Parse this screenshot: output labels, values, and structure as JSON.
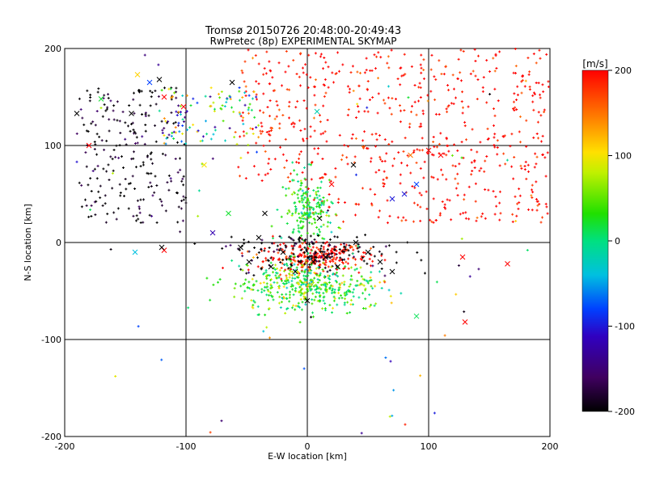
{
  "chart_data": {
    "type": "scatter",
    "title": "Tromsø 20150726 20:48:00-20:49:43",
    "subtitle": "RwPretec (8p) EXPERIMENTAL SKYMAP",
    "xlabel": "E-W location [km]",
    "ylabel": "N-S location [km]",
    "xlim": [
      -200,
      200
    ],
    "ylim": [
      -200,
      200
    ],
    "x_ticks": [
      -200,
      -100,
      0,
      100,
      200
    ],
    "y_ticks": [
      -200,
      -100,
      0,
      100,
      200
    ],
    "grid": true,
    "marker_types": [
      "plus",
      "cross"
    ],
    "colorbar": {
      "label": "[m/s]",
      "range": [
        -200,
        200
      ],
      "ticks": [
        200,
        100,
        0,
        -100,
        -200
      ],
      "colormap": "rainbow (black-purple-blue-cyan-green-yellow-orange-red)"
    },
    "clusters": [
      {
        "region": "north-east broad area",
        "x_range": [
          -60,
          200
        ],
        "y_range": [
          20,
          200
        ],
        "velocity": 200
      },
      {
        "region": "north-west",
        "x_range": [
          -190,
          -100
        ],
        "y_range": [
          20,
          160
        ],
        "velocity": -200
      },
      {
        "region": "north-west arc",
        "x_range": [
          -120,
          -40
        ],
        "y_range": [
          100,
          160
        ],
        "velocity": 20
      },
      {
        "region": "central column",
        "x_range": [
          -20,
          20
        ],
        "y_range": [
          0,
          70
        ],
        "velocity": 20
      },
      {
        "region": "center band",
        "x_range": [
          -40,
          50
        ],
        "y_range": [
          -30,
          0
        ],
        "velocity": 200
      },
      {
        "region": "center core",
        "x_range": [
          -60,
          70
        ],
        "y_range": [
          -30,
          10
        ],
        "velocity": -200
      },
      {
        "region": "south of center",
        "x_range": [
          -60,
          60
        ],
        "y_range": [
          -70,
          -20
        ],
        "velocity": 20
      }
    ],
    "points": [
      {
        "x": -170,
        "y": 148,
        "v": 20,
        "m": "cross"
      },
      {
        "x": -140,
        "y": 173,
        "v": 110,
        "m": "cross"
      },
      {
        "x": -130,
        "y": 165,
        "v": -80,
        "m": "cross"
      },
      {
        "x": -122,
        "y": 168,
        "v": -200,
        "m": "cross"
      },
      {
        "x": -118,
        "y": 150,
        "v": 200,
        "m": "cross"
      },
      {
        "x": -190,
        "y": 133,
        "v": -200,
        "m": "cross"
      },
      {
        "x": -180,
        "y": 100,
        "v": 200,
        "m": "cross"
      },
      {
        "x": -145,
        "y": 133,
        "v": -200,
        "m": "cross"
      },
      {
        "x": -142,
        "y": -10,
        "v": -40,
        "m": "cross"
      },
      {
        "x": -118,
        "y": -8,
        "v": 200,
        "m": "cross"
      },
      {
        "x": -120,
        "y": -5,
        "v": -200,
        "m": "cross"
      },
      {
        "x": -102,
        "y": 140,
        "v": 200,
        "m": "cross"
      },
      {
        "x": -62,
        "y": 165,
        "v": -200,
        "m": "cross"
      },
      {
        "x": -78,
        "y": 10,
        "v": -120,
        "m": "cross"
      },
      {
        "x": 90,
        "y": 60,
        "v": -80,
        "m": "cross"
      },
      {
        "x": 70,
        "y": 45,
        "v": -100,
        "m": "cross"
      },
      {
        "x": 80,
        "y": 50,
        "v": -100,
        "m": "cross"
      },
      {
        "x": 85,
        "y": 90,
        "v": 150,
        "m": "cross"
      },
      {
        "x": 100,
        "y": 95,
        "v": 200,
        "m": "cross"
      },
      {
        "x": 110,
        "y": 90,
        "v": 200,
        "m": "cross"
      },
      {
        "x": 130,
        "y": -82,
        "v": 200,
        "m": "cross"
      },
      {
        "x": 128,
        "y": -15,
        "v": 200,
        "m": "cross"
      },
      {
        "x": 165,
        "y": -22,
        "v": 200,
        "m": "cross"
      },
      {
        "x": 90,
        "y": -76,
        "v": 10,
        "m": "cross"
      },
      {
        "x": 8,
        "y": 135,
        "v": -20,
        "m": "cross"
      },
      {
        "x": 20,
        "y": 60,
        "v": 200,
        "m": "cross"
      },
      {
        "x": 38,
        "y": 80,
        "v": -200,
        "m": "cross"
      },
      {
        "x": 0,
        "y": -60,
        "v": -200,
        "m": "cross"
      },
      {
        "x": -55,
        "y": -5,
        "v": -200,
        "m": "cross"
      },
      {
        "x": -48,
        "y": -20,
        "v": -200,
        "m": "cross"
      },
      {
        "x": -40,
        "y": 5,
        "v": -200,
        "m": "cross"
      },
      {
        "x": -30,
        "y": -25,
        "v": -200,
        "m": "cross"
      },
      {
        "x": -20,
        "y": -10,
        "v": -200,
        "m": "cross"
      },
      {
        "x": -10,
        "y": -30,
        "v": -200,
        "m": "cross"
      },
      {
        "x": 5,
        "y": -20,
        "v": -200,
        "m": "cross"
      },
      {
        "x": 15,
        "y": -15,
        "v": -200,
        "m": "cross"
      },
      {
        "x": 25,
        "y": -25,
        "v": -200,
        "m": "cross"
      },
      {
        "x": 40,
        "y": 0,
        "v": -200,
        "m": "cross"
      },
      {
        "x": 50,
        "y": -10,
        "v": -200,
        "m": "cross"
      },
      {
        "x": 60,
        "y": -20,
        "v": -200,
        "m": "cross"
      },
      {
        "x": 70,
        "y": -30,
        "v": -200,
        "m": "cross"
      },
      {
        "x": 10,
        "y": 25,
        "v": -200,
        "m": "cross"
      },
      {
        "x": -35,
        "y": 30,
        "v": -200,
        "m": "cross"
      },
      {
        "x": -65,
        "y": 30,
        "v": 20,
        "m": "cross"
      },
      {
        "x": -85,
        "y": 80,
        "v": 100,
        "m": "cross"
      }
    ]
  }
}
